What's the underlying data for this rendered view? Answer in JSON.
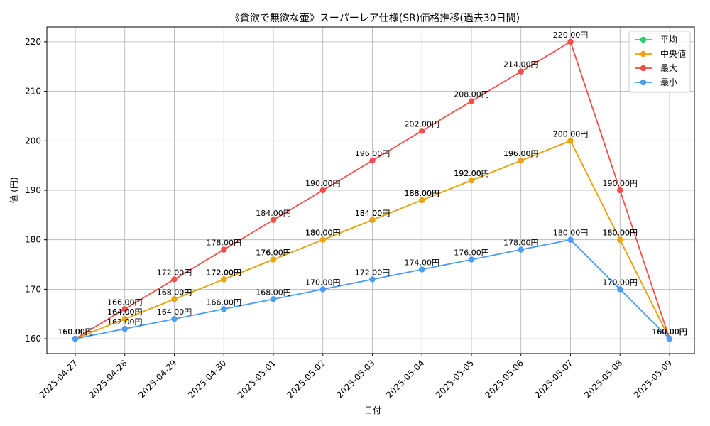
{
  "chart_data": {
    "type": "line",
    "title": "《貪欲で無欲な壷》スーパーレア仕様(SR)価格推移(過去30日間)",
    "xlabel": "日付",
    "ylabel": "値 (円)",
    "categories": [
      "2025-04-27",
      "2025-04-28",
      "2025-04-29",
      "2025-04-30",
      "2025-05-01",
      "2025-05-02",
      "2025-05-03",
      "2025-05-04",
      "2025-05-05",
      "2025-05-06",
      "2025-05-07",
      "2025-05-08",
      "2025-05-09"
    ],
    "ylim": [
      157,
      223
    ],
    "yticks": [
      160,
      170,
      180,
      190,
      200,
      210,
      220
    ],
    "grid": true,
    "legend_position": "top-right",
    "label_suffix": "円",
    "series": [
      {
        "name": "平均",
        "color": "#2ecc71",
        "values": [
          160,
          164,
          168,
          172,
          176,
          180,
          184,
          188,
          192,
          196,
          200,
          180,
          160
        ]
      },
      {
        "name": "中央値",
        "color": "#f0a30a",
        "values": [
          160,
          164,
          168,
          172,
          176,
          180,
          184,
          188,
          192,
          196,
          200,
          180,
          160
        ]
      },
      {
        "name": "最大",
        "color": "#f0504a",
        "values": [
          160,
          166,
          172,
          178,
          184,
          190,
          196,
          202,
          208,
          214,
          220,
          190,
          160
        ]
      },
      {
        "name": "最小",
        "color": "#4a9cf5",
        "values": [
          160,
          162,
          164,
          166,
          168,
          170,
          172,
          174,
          176,
          178,
          180,
          170,
          160
        ]
      }
    ]
  }
}
